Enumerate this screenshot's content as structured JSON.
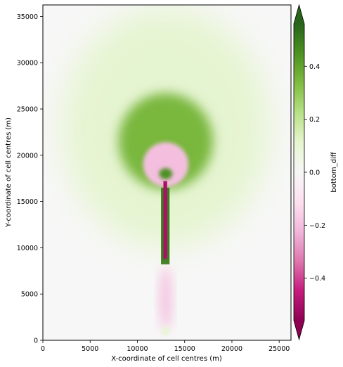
{
  "chart_data": {
    "type": "heatmap",
    "title": "",
    "xlabel": "X-coordinate of cell centres (m)",
    "ylabel": "Y-coordinate of cell centres (m)",
    "xlim": [
      0,
      26250
    ],
    "ylim": [
      0,
      36250
    ],
    "xticks": [
      "0",
      "5000",
      "10000",
      "15000",
      "20000",
      "25000"
    ],
    "yticks": [
      "0",
      "5000",
      "10000",
      "15000",
      "20000",
      "25000",
      "30000",
      "35000"
    ],
    "colorbar": {
      "label": "bottom_diff",
      "range": [
        -0.56,
        0.56
      ],
      "ticks": [
        "0.4",
        "0.2",
        "0.0",
        "−0.2",
        "−0.4"
      ],
      "extend": "both",
      "colormap": "PiYG",
      "colors": [
        "#8e0152",
        "#c51b7d",
        "#de77ae",
        "#f1b6da",
        "#fde0ef",
        "#f7f7f7",
        "#e6f5d0",
        "#b8e186",
        "#7fbc41",
        "#4d9221",
        "#276419"
      ]
    },
    "features": [
      {
        "name": "broad-positive-plume",
        "cx": 13000,
        "cy": 23000,
        "rx": 11000,
        "ry": 13000,
        "value": 0.12
      },
      {
        "name": "strong-positive-arc",
        "cx": 13000,
        "cy": 21500,
        "rx": 5000,
        "ry": 5200,
        "value": 0.35
      },
      {
        "name": "negative-ring",
        "cx": 13000,
        "cy": 19000,
        "rx": 2400,
        "ry": 2400,
        "value": -0.2
      },
      {
        "name": "positive-core",
        "cx": 13000,
        "cy": 18000,
        "rx": 700,
        "ry": 600,
        "value": 0.45
      },
      {
        "name": "channel-strip-positive",
        "x0": 12500,
        "x1": 13400,
        "y0": 8200,
        "y1": 16500,
        "value": 0.5
      },
      {
        "name": "channel-strip-negative",
        "x0": 12750,
        "x1": 13150,
        "y0": 8800,
        "y1": 17200,
        "value": -0.5
      },
      {
        "name": "lower-negative-tail",
        "cx": 13000,
        "cy": 4500,
        "rx": 600,
        "ry": 3500,
        "value": -0.2
      },
      {
        "name": "bottom-positive-spot",
        "cx": 13000,
        "cy": 1000,
        "rx": 400,
        "ry": 500,
        "value": 0.1
      }
    ]
  }
}
